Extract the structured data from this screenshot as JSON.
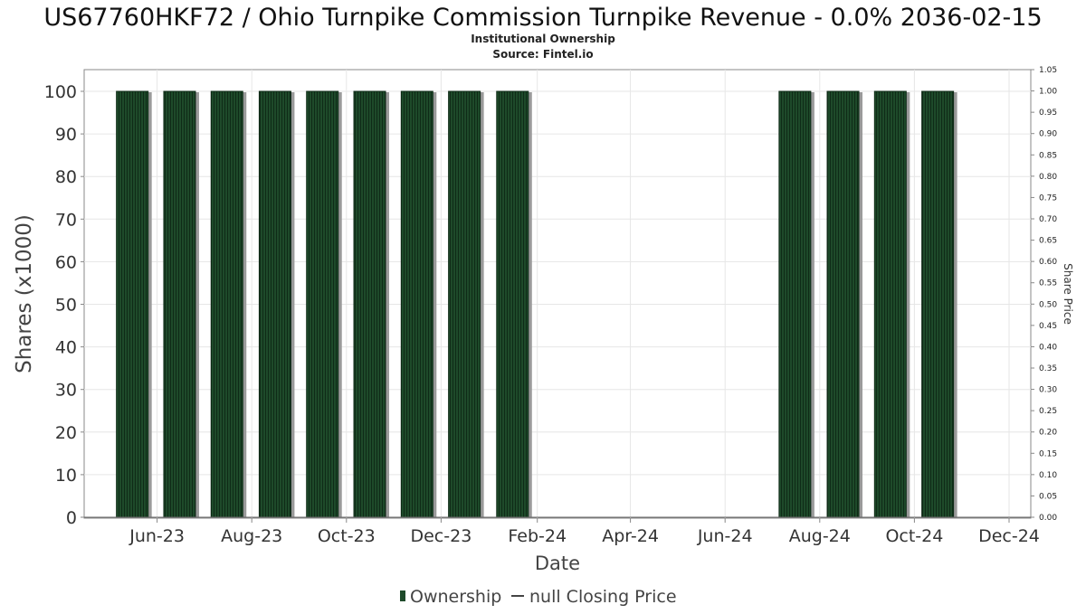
{
  "chart_data": {
    "type": "bar",
    "title": "US67760HKF72 / Ohio Turnpike Commission Turnpike Revenue - 0.0% 2036-02-15",
    "subtitle_line1": "Institutional Ownership",
    "subtitle_line2": "Source: Fintel.io",
    "xlabel": "Date",
    "ylabel": "Shares (x1000)",
    "y2label": "Share Price",
    "ylim": [
      0,
      105
    ],
    "y2lim": [
      0,
      1.05
    ],
    "yticks": [
      0,
      10,
      20,
      30,
      40,
      50,
      60,
      70,
      80,
      90,
      100
    ],
    "y2ticks": [
      "0.00",
      "0.05",
      "0.10",
      "0.15",
      "0.20",
      "0.25",
      "0.30",
      "0.35",
      "0.40",
      "0.45",
      "0.50",
      "0.55",
      "0.60",
      "0.65",
      "0.70",
      "0.75",
      "0.80",
      "0.85",
      "0.90",
      "0.95",
      "1.00",
      "1.05"
    ],
    "x_range": [
      "2023-04-15",
      "2024-12-15"
    ],
    "x_ticks": [
      {
        "date": "2023-06-01",
        "label": "Jun-23"
      },
      {
        "date": "2023-08-01",
        "label": "Aug-23"
      },
      {
        "date": "2023-10-01",
        "label": "Oct-23"
      },
      {
        "date": "2023-12-01",
        "label": "Dec-23"
      },
      {
        "date": "2024-02-01",
        "label": "Feb-24"
      },
      {
        "date": "2024-04-01",
        "label": "Apr-24"
      },
      {
        "date": "2024-06-01",
        "label": "Jun-24"
      },
      {
        "date": "2024-08-01",
        "label": "Aug-24"
      },
      {
        "date": "2024-10-01",
        "label": "Oct-24"
      },
      {
        "date": "2024-12-01",
        "label": "Dec-24"
      }
    ],
    "grid": true,
    "legend_placement": "bottom-center",
    "series": [
      {
        "name": "Ownership",
        "color": "#1e4a2a",
        "points": [
          {
            "start": "2023-05-01",
            "end": "2023-05-31",
            "value": 100
          },
          {
            "start": "2023-06-01",
            "end": "2023-06-30",
            "value": 100
          },
          {
            "start": "2023-07-01",
            "end": "2023-07-31",
            "value": 100
          },
          {
            "start": "2023-08-01",
            "end": "2023-08-31",
            "value": 100
          },
          {
            "start": "2023-09-01",
            "end": "2023-09-30",
            "value": 100
          },
          {
            "start": "2023-10-01",
            "end": "2023-10-31",
            "value": 100
          },
          {
            "start": "2023-11-01",
            "end": "2023-11-30",
            "value": 100
          },
          {
            "start": "2023-12-01",
            "end": "2023-12-31",
            "value": 100
          },
          {
            "start": "2024-01-01",
            "end": "2024-01-31",
            "value": 100
          },
          {
            "start": "2024-07-01",
            "end": "2024-07-31",
            "value": 100
          },
          {
            "start": "2024-08-01",
            "end": "2024-08-31",
            "value": 100
          },
          {
            "start": "2024-09-01",
            "end": "2024-09-30",
            "value": 100
          },
          {
            "start": "2024-10-01",
            "end": "2024-10-31",
            "value": 100
          }
        ]
      },
      {
        "name": "null Closing Price",
        "color": "#333333",
        "points": []
      }
    ]
  }
}
